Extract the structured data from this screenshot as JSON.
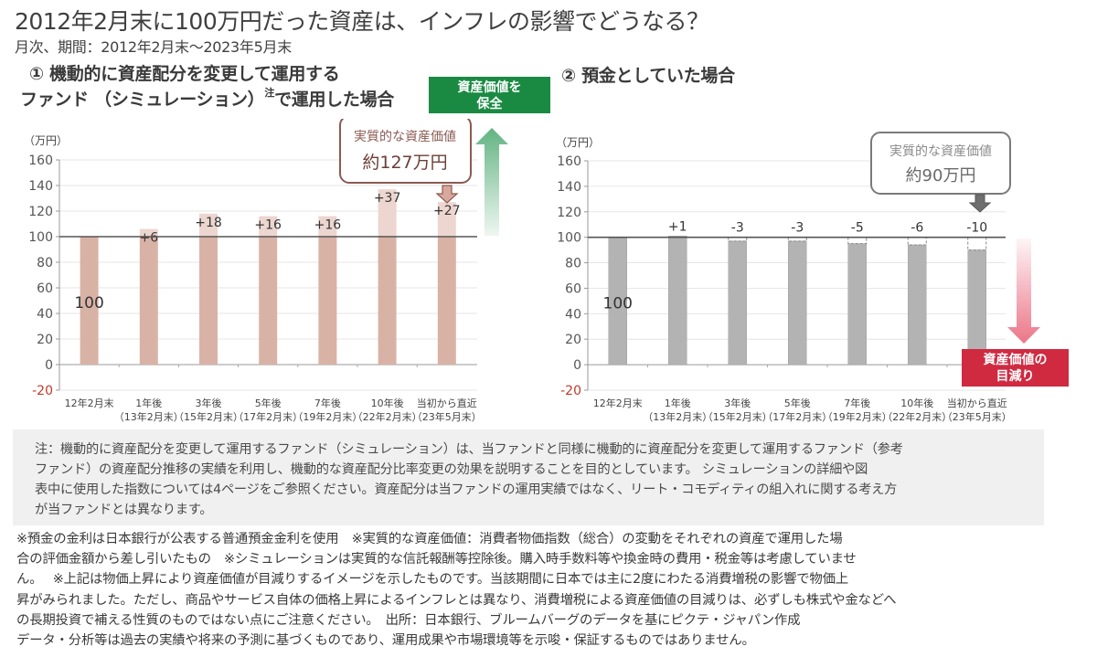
{
  "header": {
    "title": "2012年2月末に100万円だった資産は、インフレの影響でどうなる？",
    "subtitle": "月次、期間：2012年2月末～2023年5月末"
  },
  "panel1": {
    "heading_line1": "①  機動的に資産配分を変更して運用する",
    "heading_line2_pre": "ファンド （シミュレーション）",
    "heading_line2_sup": "注",
    "heading_line2_post": "で運用した場合",
    "badge_line1": "資産価値を",
    "badge_line2": "保全",
    "callout_line1": "実質的な資産価値",
    "callout_line2": "約127万円"
  },
  "panel2": {
    "heading": "②  預金としていた場合",
    "badge_line1": "資産価値の",
    "badge_line2": "目減り",
    "callout_line1": "実質的な資産価値",
    "callout_line2": "約90万円"
  },
  "colors": {
    "fund_bar": "#d9b2a6",
    "fund_gain": "#ecd6cf",
    "deposit_bar": "#b3b3b3",
    "keep_green": "#1a8a43",
    "loss_red": "#d02a41",
    "negative_tick": "#c0392b"
  },
  "chart_data": [
    {
      "type": "bar",
      "title": "機動的に資産配分を変更して運用するファンド（シミュレーション）で運用した場合",
      "ylabel": "（万円）",
      "ylim": [
        -20,
        160
      ],
      "yticks": [
        "160",
        "140",
        "120",
        "100",
        "80",
        "60",
        "40",
        "20",
        "0",
        "-20"
      ],
      "ytick_values": [
        160,
        140,
        120,
        100,
        80,
        60,
        40,
        20,
        0,
        -20
      ],
      "categories": [
        {
          "line1": "12年2月末",
          "line2": ""
        },
        {
          "line1": "1年後",
          "line2": "（13年2月末）"
        },
        {
          "line1": "3年後",
          "line2": "（15年2月末）"
        },
        {
          "line1": "5年後",
          "line2": "（17年2月末）"
        },
        {
          "line1": "7年後",
          "line2": "（19年2月末）"
        },
        {
          "line1": "10年後",
          "line2": "（22年2月末）"
        },
        {
          "line1": "当初から直近",
          "line2": "（23年5月末）"
        }
      ],
      "values": [
        100,
        106,
        118,
        116,
        116,
        137,
        127
      ],
      "labels": [
        "100",
        "+6",
        "+18",
        "+16",
        "+16",
        "+37",
        "+27"
      ],
      "reference_line": 100,
      "grid": true
    },
    {
      "type": "bar",
      "title": "預金としていた場合",
      "ylabel": "（万円）",
      "ylim": [
        -20,
        160
      ],
      "yticks": [
        "160",
        "140",
        "120",
        "100",
        "80",
        "60",
        "40",
        "20",
        "0",
        "-20"
      ],
      "ytick_values": [
        160,
        140,
        120,
        100,
        80,
        60,
        40,
        20,
        0,
        -20
      ],
      "categories": [
        {
          "line1": "12年2月末",
          "line2": ""
        },
        {
          "line1": "1年後",
          "line2": "（13年2月末）"
        },
        {
          "line1": "3年後",
          "line2": "（15年2月末）"
        },
        {
          "line1": "5年後",
          "line2": "（17年2月末）"
        },
        {
          "line1": "7年後",
          "line2": "（19年2月末）"
        },
        {
          "line1": "10年後",
          "line2": "（22年2月末）"
        },
        {
          "line1": "当初から直近",
          "line2": "（23年5月末）"
        }
      ],
      "values": [
        100,
        101,
        97,
        97,
        95,
        94,
        90
      ],
      "labels": [
        "100",
        "+1",
        "-3",
        "-3",
        "-5",
        "-6",
        "-10"
      ],
      "reference_line": 100,
      "grid": true
    }
  ],
  "note": {
    "lines": [
      "注：機動的に資産配分を変更して運用するファンド（シミュレーション）は、当ファンドと同様に機動的に資産配分を変更して運用するファンド（参考",
      "ファンド）の資産配分推移の実績を利用し、機動的な資産配分比率変更の効果を説明することを目的としています。 シミュレーションの詳細や図",
      "表中に使用した指数については4ページをご参照ください。資産配分は当ファンドの運用実績ではなく、リート・コモディティの組入れに関する考え方",
      "が当ファンドとは異なります。"
    ]
  },
  "footer": {
    "lines": [
      "※預金の金利は日本銀行が公表する普通預金金利を使用　※実質的な資産価値：消費者物価指数（総合）の変動をそれぞれの資産で運用した場",
      "合の評価金額から差し引いたもの　※シミュレーションは実質的な信託報酬等控除後。購入時手数料等や換金時の費用・税金等は考慮していませ",
      "ん。　 ※上記は物価上昇により資産価値が目減りするイメージを示したものです。当該期間に日本では主に2度にわたる消費増税の影響で物価上",
      "昇がみられました。ただし、商品やサービス自体の価格上昇によるインフレとは異なり、消費増税による資産価値の目減りは、必ずしも株式や金などへ",
      "の長期投資で補える性質のものではない点にご注意ください。　出所：日本銀行、ブルームバーグのデータを基にピクテ・ジャパン作成",
      "データ・分析等は過去の実績や将来の予測に基づくものであり、運用成果や市場環境等を示唆・保証するものではありません。"
    ]
  }
}
